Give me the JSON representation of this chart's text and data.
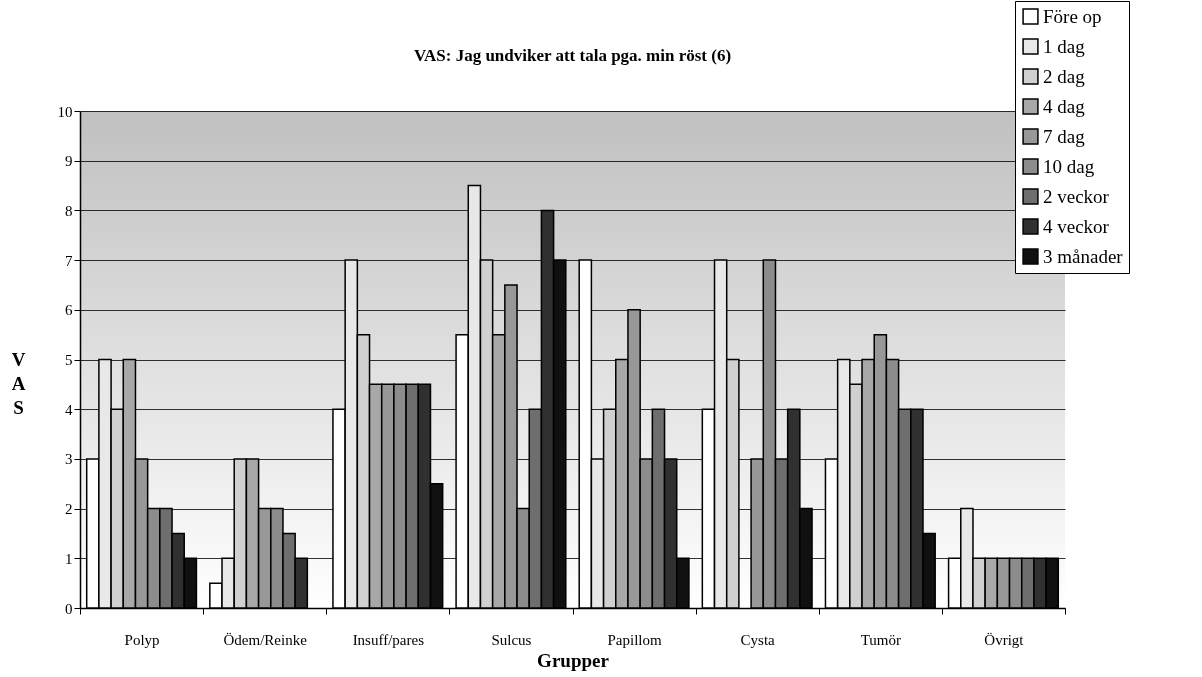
{
  "chart_data": {
    "type": "bar",
    "title": "VAS: Jag undviker att tala pga. min röst (6)",
    "xlabel": "Grupper",
    "ylabel": "VAS",
    "categories": [
      "Polyp",
      "Ödem/Reinke",
      "Insuff/pares",
      "Sulcus",
      "Papillom",
      "Cysta",
      "Tumör",
      "Övrigt"
    ],
    "ylim": [
      0,
      10
    ],
    "yticks": [
      0,
      1,
      2,
      3,
      4,
      5,
      6,
      7,
      8,
      9,
      10
    ],
    "grid": "y",
    "legend": "top right",
    "series": [
      {
        "name": "Före op",
        "color": "#ffffff",
        "values": [
          3,
          0.5,
          4,
          5.5,
          7,
          4,
          3,
          1
        ]
      },
      {
        "name": "1 dag",
        "color": "#e8e8e8",
        "values": [
          5,
          1,
          7,
          8.5,
          3,
          7,
          5,
          2
        ]
      },
      {
        "name": "2 dag",
        "color": "#d0d0d0",
        "values": [
          4,
          3,
          5.5,
          7,
          4,
          5,
          4.5,
          1
        ]
      },
      {
        "name": "4 dag",
        "color": "#a8a8a8",
        "values": [
          5,
          3,
          4.5,
          5.5,
          5,
          null,
          5,
          1
        ]
      },
      {
        "name": "7 dag",
        "color": "#989898",
        "values": [
          3,
          2,
          4.5,
          6.5,
          6,
          3,
          5.5,
          1
        ]
      },
      {
        "name": "10 dag",
        "color": "#8c8c8c",
        "values": [
          2,
          2,
          4.5,
          2,
          3,
          7,
          5,
          1
        ]
      },
      {
        "name": "2 veckor",
        "color": "#6e6e6e",
        "values": [
          2,
          1.5,
          4.5,
          4,
          4,
          3,
          4,
          1
        ]
      },
      {
        "name": "4 veckor",
        "color": "#303030",
        "values": [
          1.5,
          1,
          4.5,
          8,
          3,
          4,
          4,
          1
        ]
      },
      {
        "name": "3 månader",
        "color": "#101010",
        "values": [
          1,
          null,
          2.5,
          7,
          1,
          2,
          1.5,
          1
        ]
      }
    ]
  }
}
